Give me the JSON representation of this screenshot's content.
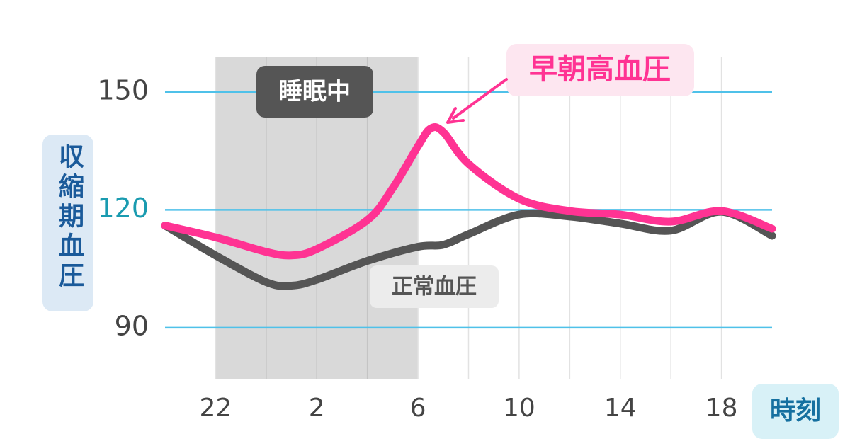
{
  "chart_data": {
    "type": "line",
    "y_label": "収縮期血圧",
    "x_label": "時刻",
    "xlim": [
      20,
      44
    ],
    "xticks": [
      22,
      {
        "value": 26,
        "label": "2"
      },
      {
        "value": 30,
        "label": "6"
      },
      {
        "value": 34,
        "label": "10"
      },
      {
        "value": 38,
        "label": "14"
      },
      {
        "value": 42,
        "label": "18"
      }
    ],
    "ylim": [
      77,
      159
    ],
    "yticks": [
      90,
      120,
      150
    ],
    "ytick_colors": [
      "#444444",
      "#1a9bb0",
      "#444444"
    ],
    "grid": true,
    "sleep": {
      "label": "睡眠中",
      "span": [
        22,
        30
      ]
    },
    "series": [
      {
        "name": "正常血圧",
        "color": "#555555",
        "x": [
          20,
          22,
          24,
          25,
          26,
          28,
          30,
          31,
          32,
          34,
          36,
          38,
          40,
          42,
          44
        ],
        "values": [
          116,
          108.4,
          101.6,
          100.7,
          102.2,
          107,
          110.6,
          111.1,
          113.8,
          118.8,
          118.3,
          116.5,
          114.7,
          119.5,
          113.4
        ]
      },
      {
        "name": "早朝高血圧",
        "color": "#ff3393",
        "x": [
          20,
          22,
          24,
          25,
          26,
          28,
          29,
          30,
          30.5,
          31,
          32,
          34,
          36,
          38,
          40,
          42,
          44
        ],
        "values": [
          116,
          113,
          109.3,
          108.4,
          110,
          117.4,
          125.5,
          136.2,
          140.7,
          139.8,
          131.7,
          122.8,
          119.7,
          118.8,
          117,
          119.7,
          115.2
        ]
      }
    ]
  }
}
